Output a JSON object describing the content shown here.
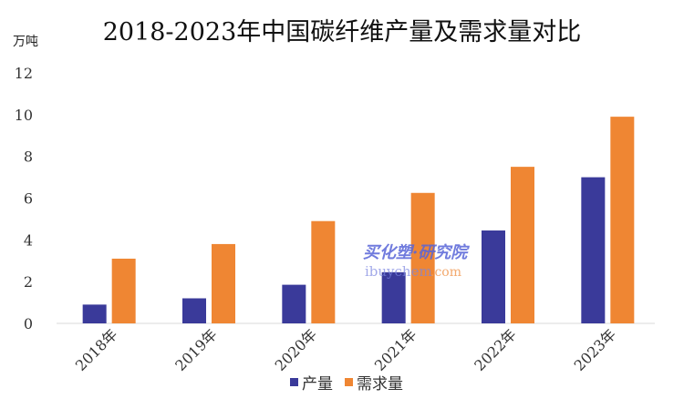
{
  "chart_data": {
    "type": "bar",
    "title": "2018-2023年中国碳纤维产量及需求量对比",
    "ylabel": "万吨",
    "xlabel": "",
    "categories": [
      "2018年",
      "2019年",
      "2020年",
      "2021年",
      "2022年",
      "2023年"
    ],
    "series": [
      {
        "name": "产量",
        "color": "#3a3a9a",
        "values": [
          0.9,
          1.2,
          1.85,
          2.45,
          4.45,
          7.0
        ]
      },
      {
        "name": "需求量",
        "color": "#ef8633",
        "values": [
          3.1,
          3.8,
          4.9,
          6.25,
          7.5,
          9.9
        ]
      }
    ],
    "ylim": [
      0,
      12
    ],
    "yticks": [
      0,
      2,
      4,
      6,
      8,
      10,
      12
    ],
    "grid": false,
    "legend": "bottom-center"
  },
  "watermark": {
    "line1": "买化塑·研究院",
    "line2": "ibuychem",
    "line3": ".com"
  }
}
